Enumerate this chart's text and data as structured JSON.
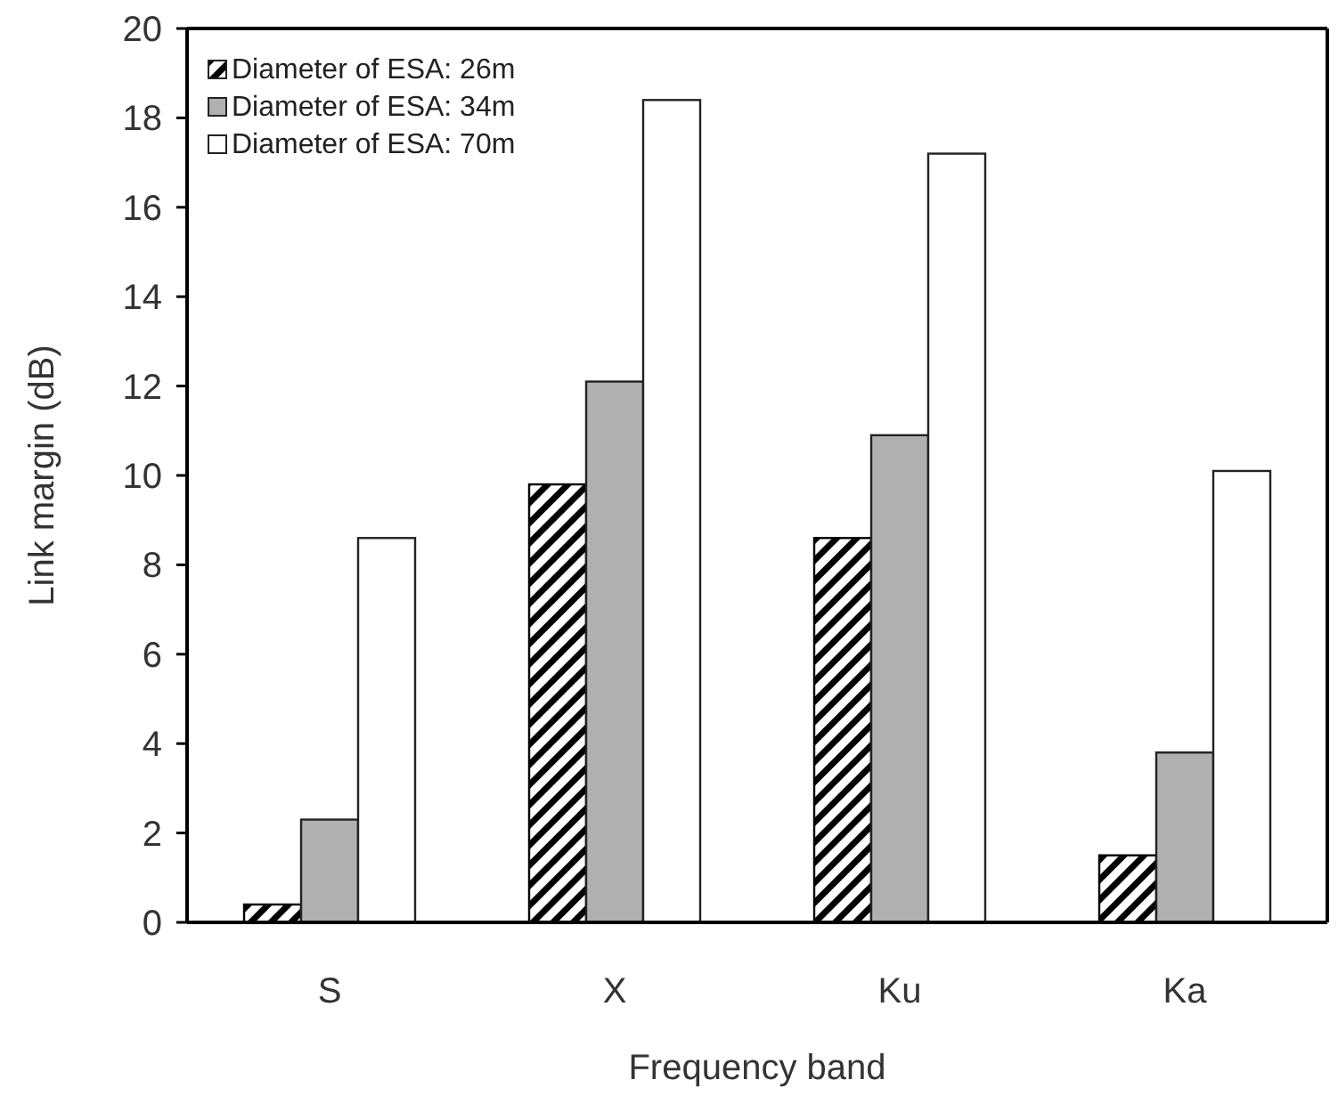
{
  "chart_data": {
    "type": "bar",
    "xlabel": "Frequency band",
    "ylabel": "Link margin (dB)",
    "categories": [
      "S",
      "X",
      "Ku",
      "Ka"
    ],
    "ylim": [
      0,
      20
    ],
    "yticks": [
      0,
      2,
      4,
      6,
      8,
      10,
      12,
      14,
      16,
      18,
      20
    ],
    "legend": "top left",
    "series": [
      {
        "name": "Diameter of ESA: 26m",
        "color": "#000000",
        "values": [
          0.4,
          9.8,
          8.6,
          1.5
        ]
      },
      {
        "name": "Diameter of ESA: 34m",
        "color": "#b0b0b0",
        "values": [
          2.3,
          12.1,
          10.9,
          3.8
        ]
      },
      {
        "name": "Diameter of ESA: 70m",
        "color": "#ffffff",
        "values": [
          8.6,
          18.4,
          17.2,
          10.1
        ]
      }
    ]
  }
}
